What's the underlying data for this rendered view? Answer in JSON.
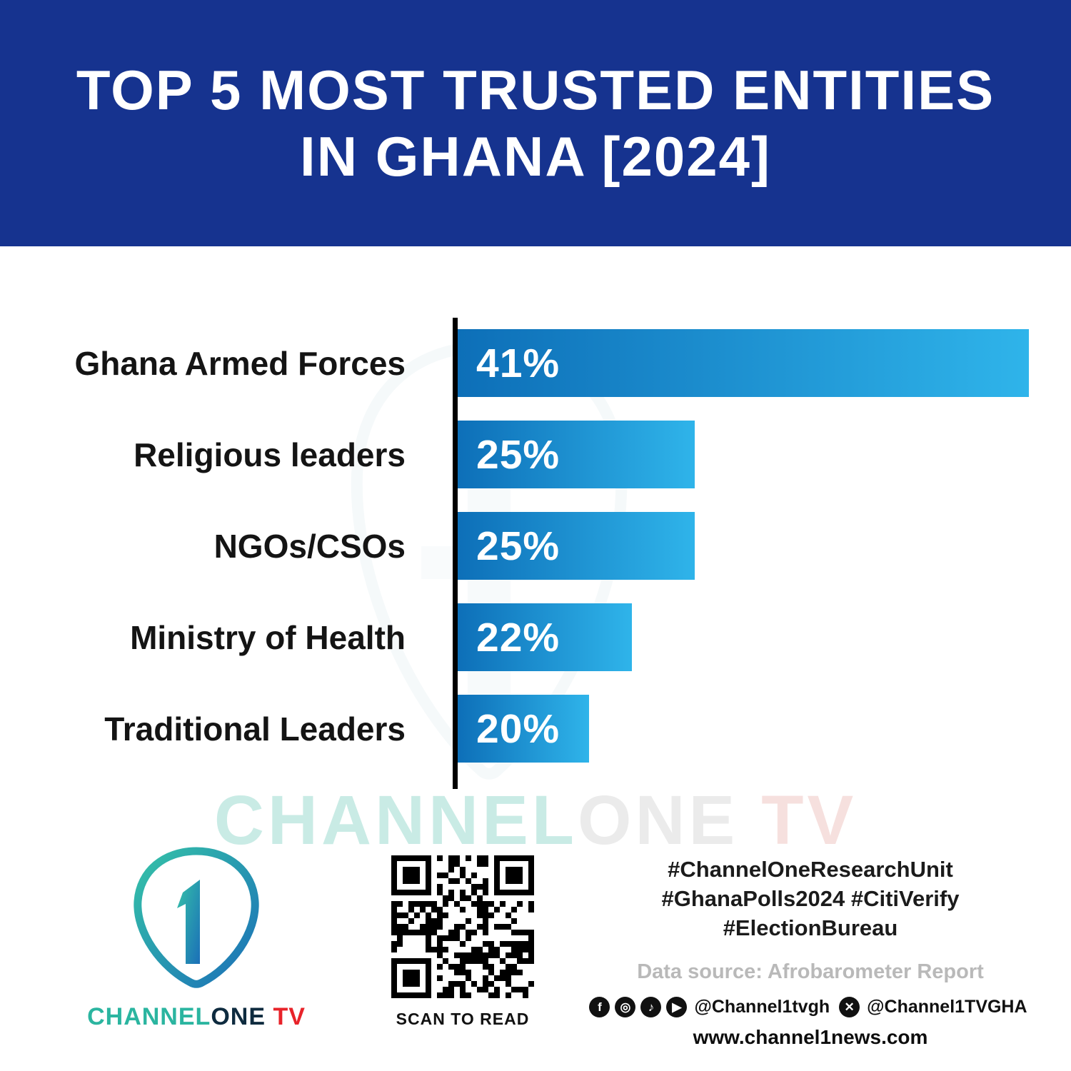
{
  "header": {
    "title_line1": "TOP 5 MOST TRUSTED ENTITIES",
    "title_line2": "IN GHANA [2024]"
  },
  "chart_data": {
    "type": "bar",
    "orientation": "horizontal",
    "title": "Top 5 Most Trusted Entities in Ghana [2024]",
    "categories": [
      "Ghana Armed Forces",
      "Religious leaders",
      "NGOs/CSOs",
      "Ministry of Health",
      "Traditional Leaders"
    ],
    "values": [
      41,
      25,
      25,
      22,
      20
    ],
    "value_suffix": "%",
    "xlim": [
      0,
      41
    ],
    "grid": false,
    "legend": false,
    "items": [
      {
        "label": "Ghana Armed Forces",
        "value": 41,
        "value_label": "41%",
        "bar_pct": 100
      },
      {
        "label": "Religious leaders",
        "value": 25,
        "value_label": "25%",
        "bar_pct": 41.5
      },
      {
        "label": "NGOs/CSOs",
        "value": 25,
        "value_label": "25%",
        "bar_pct": 41.5
      },
      {
        "label": "Ministry of Health",
        "value": 22,
        "value_label": "22%",
        "bar_pct": 30.5
      },
      {
        "label": "Traditional Leaders",
        "value": 20,
        "value_label": "20%",
        "bar_pct": 23
      }
    ]
  },
  "watermark": {
    "part1": "CHANNEL",
    "part2": "ONE",
    "part3": " TV"
  },
  "footer": {
    "logo": {
      "digit": "1",
      "brand_part1": "CHANNEL",
      "brand_part2": "ONE",
      "brand_part3": " TV"
    },
    "qr_caption": "SCAN TO READ",
    "hashtags_line1": "#ChannelOneResearchUnit",
    "hashtags_line2": "#GhanaPolls2024 #CitiVerify",
    "hashtags_line3": "#ElectionBureau",
    "data_source": "Data source: Afrobarometer Report",
    "social_icons": [
      {
        "name": "facebook-icon",
        "glyph": "f"
      },
      {
        "name": "instagram-icon",
        "glyph": "◎"
      },
      {
        "name": "tiktok-icon",
        "glyph": "♪"
      },
      {
        "name": "youtube-icon",
        "glyph": "▶"
      }
    ],
    "x_icon": {
      "name": "x-icon",
      "glyph": "✕"
    },
    "social_handle1": "@Channel1tvgh",
    "social_handle2": "@Channel1TVGHA",
    "website": "www.channel1news.com"
  },
  "colors": {
    "header_bg": "#16338f",
    "bar_gradient_start": "#0d6fb8",
    "bar_gradient_end": "#2fb4ea",
    "axis": "#000000",
    "brand_teal": "#2bb5a0",
    "brand_red": "#e8232a"
  }
}
